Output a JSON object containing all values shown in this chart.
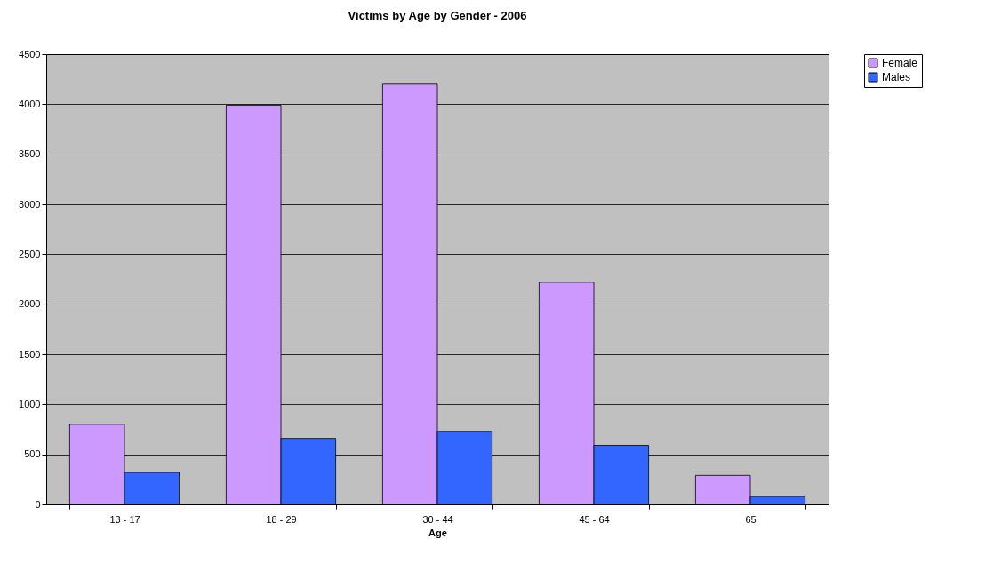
{
  "chart_data": {
    "type": "bar",
    "title": "Victims by Age by Gender - 2006",
    "xlabel": "Age",
    "categories": [
      "13 - 17",
      "18 - 29",
      "30 - 44",
      "45 - 64",
      "65"
    ],
    "series": [
      {
        "name": "Female",
        "color": "#cc99ff",
        "values": [
          800,
          3990,
          4200,
          2220,
          290
        ]
      },
      {
        "name": "Males",
        "color": "#3366ff",
        "values": [
          320,
          660,
          730,
          590,
          80
        ]
      }
    ],
    "ylim": [
      0,
      4500
    ],
    "yticks": [
      0,
      500,
      1000,
      1500,
      2000,
      2500,
      3000,
      3500,
      4000,
      4500
    ],
    "grid": "y",
    "legend": "right"
  }
}
